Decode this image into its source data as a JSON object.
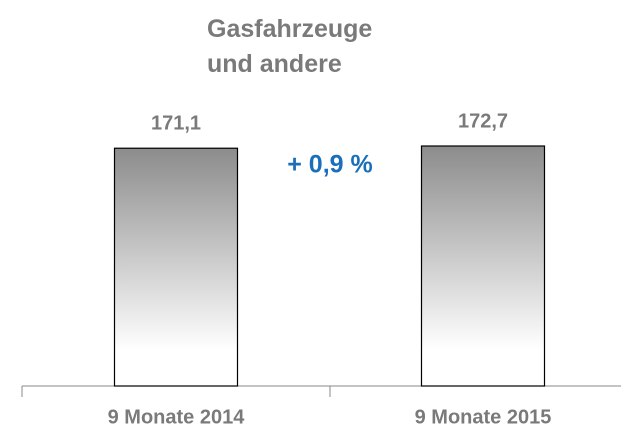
{
  "chart_data": {
    "type": "bar",
    "title": "Gasfahrzeuge und andere",
    "categories": [
      "9 Monate 2014",
      "9 Monate 2015"
    ],
    "values": [
      171.1,
      172.7
    ],
    "value_labels": [
      "171,1",
      "172,7"
    ],
    "annotation": "+ 0,9 %",
    "color": "#8c8c8c"
  }
}
